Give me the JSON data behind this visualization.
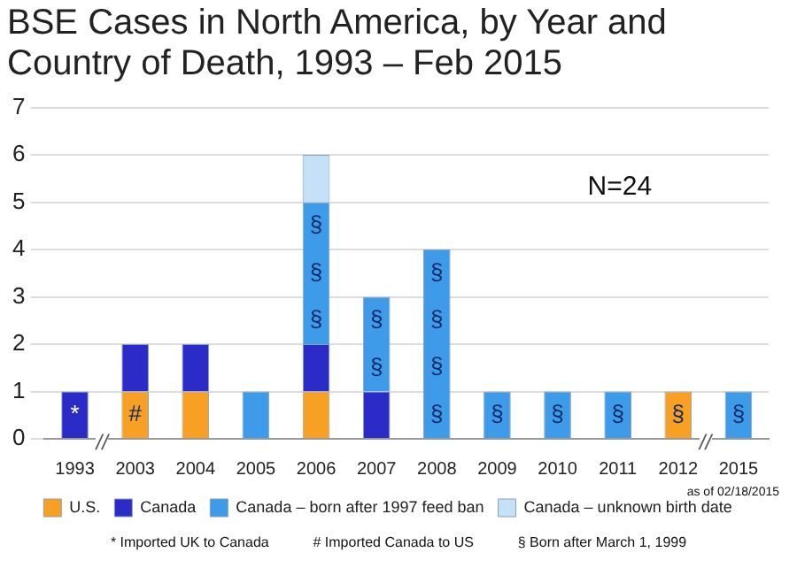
{
  "chart_data": {
    "type": "bar",
    "title": "BSE Cases in North America, by Year and Country of Death, 1993 – Feb 2015",
    "categories": [
      "1993",
      "2003",
      "2004",
      "2005",
      "2006",
      "2007",
      "2008",
      "2009",
      "2010",
      "2011",
      "2012",
      "2015"
    ],
    "series": [
      {
        "name": "U.S.",
        "color": "#f7a023",
        "values": [
          0,
          1,
          1,
          0,
          1,
          0,
          0,
          0,
          0,
          0,
          1,
          0
        ],
        "value_labels": [
          null,
          "#",
          null,
          null,
          null,
          null,
          null,
          null,
          null,
          null,
          "§",
          null
        ]
      },
      {
        "name": "Canada",
        "color": "#2b2bc8",
        "values": [
          1,
          1,
          1,
          0,
          1,
          1,
          0,
          0,
          0,
          0,
          0,
          0
        ],
        "value_labels": [
          "*",
          null,
          null,
          null,
          null,
          null,
          null,
          null,
          null,
          null,
          null,
          null
        ]
      },
      {
        "name": "Canada – born after 1997 feed ban",
        "color": "#3d9be9",
        "values": [
          0,
          0,
          0,
          1,
          3,
          2,
          4,
          1,
          1,
          1,
          0,
          1
        ],
        "value_labels": [
          null,
          null,
          null,
          null,
          "§ § §",
          "§ §",
          "§ § § §",
          "§",
          "§",
          "§",
          null,
          "§"
        ]
      },
      {
        "name": "Canada – unknown birth date",
        "color": "#c6e0f7",
        "values": [
          0,
          0,
          0,
          0,
          1,
          0,
          0,
          0,
          0,
          0,
          0,
          0
        ]
      }
    ],
    "stacked": true,
    "ylim": [
      0,
      7
    ],
    "yticks": [
      0,
      1,
      2,
      3,
      4,
      5,
      6,
      7
    ],
    "grid": "y",
    "legend": "bottom",
    "annotations": [
      "N=24",
      "as of 02/18/2015",
      "* Imported UK to Canada",
      "# Imported Canada to US",
      "§ Born after March 1, 1999",
      "//",
      "//"
    ]
  }
}
